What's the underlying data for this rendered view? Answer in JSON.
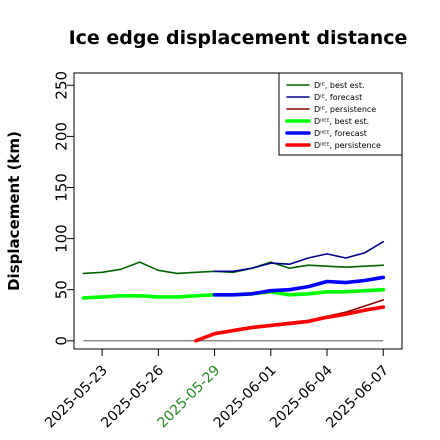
{
  "chart_data": {
    "type": "line",
    "title": "Ice edge displacement distance",
    "xlabel": "",
    "ylabel": "Displacement (km)",
    "ylim": [
      -8,
      262
    ],
    "xlim": [
      "2025-05-21T12:00",
      "2025-06-08"
    ],
    "y_ticks": [
      "0",
      "50",
      "100",
      "150",
      "200",
      "250"
    ],
    "y_tick_values": [
      0,
      50,
      100,
      150,
      200,
      250
    ],
    "x_ticks": [
      {
        "label": "2025-05-23",
        "date": "2025-05-23",
        "color": "#000000"
      },
      {
        "label": "2025-05-26",
        "date": "2025-05-26",
        "color": "#000000"
      },
      {
        "label": "2025-05-29",
        "date": "2025-05-29",
        "color": "#228b22"
      },
      {
        "label": "2025-06-01",
        "date": "2025-06-01",
        "color": "#000000"
      },
      {
        "label": "2025-06-04",
        "date": "2025-06-04",
        "color": "#000000"
      },
      {
        "label": "2025-06-07",
        "date": "2025-06-07",
        "color": "#000000"
      }
    ],
    "grid": false,
    "legend_position": "top-right",
    "series": [
      {
        "name": "Dᴵᴱ, best est.",
        "color": "#006400",
        "width": 1.6,
        "x": [
          "2025-05-22",
          "2025-05-23",
          "2025-05-24",
          "2025-05-25",
          "2025-05-26",
          "2025-05-27",
          "2025-05-28",
          "2025-05-29",
          "2025-05-30",
          "2025-05-31",
          "2025-06-01",
          "2025-06-02",
          "2025-06-03",
          "2025-06-04",
          "2025-06-05",
          "2025-06-06",
          "2025-06-07"
        ],
        "y": [
          66,
          67,
          70,
          77,
          69,
          66,
          67,
          68,
          67,
          71,
          77,
          71,
          74,
          73,
          72,
          73,
          74
        ]
      },
      {
        "name": "Dᴵᴱ, forecast",
        "color": "#00008b",
        "width": 1.6,
        "x": [
          "2025-05-29",
          "2025-05-30",
          "2025-05-31",
          "2025-06-01",
          "2025-06-02",
          "2025-06-03",
          "2025-06-04",
          "2025-06-05",
          "2025-06-06",
          "2025-06-07"
        ],
        "y": [
          68,
          68,
          71,
          76,
          75,
          81,
          85,
          81,
          86,
          97
        ]
      },
      {
        "name": "Dᴵᴱ, persistence",
        "color": "#8b0000",
        "width": 1.6,
        "x": [
          "2025-05-28",
          "2025-05-29",
          "2025-05-30",
          "2025-05-31",
          "2025-06-01",
          "2025-06-02",
          "2025-06-03",
          "2025-06-04",
          "2025-06-05",
          "2025-06-06",
          "2025-06-07"
        ],
        "y": [
          0,
          7,
          11,
          14,
          16,
          18,
          20,
          24,
          28,
          34,
          40
        ]
      },
      {
        "name": "Dᴵᴵᴱᴱ, best est.",
        "color": "#00ff00",
        "width": 3.6,
        "x": [
          "2025-05-22",
          "2025-05-23",
          "2025-05-24",
          "2025-05-25",
          "2025-05-26",
          "2025-05-27",
          "2025-05-28",
          "2025-05-29",
          "2025-05-30",
          "2025-05-31",
          "2025-06-01",
          "2025-06-02",
          "2025-06-03",
          "2025-06-04",
          "2025-06-05",
          "2025-06-06",
          "2025-06-07"
        ],
        "y": [
          42,
          43,
          44,
          44,
          43,
          43,
          44,
          45,
          45,
          46,
          48,
          45,
          46,
          48,
          48,
          49,
          50
        ]
      },
      {
        "name": "Dᴵᴵᴱᴱ, forecast",
        "color": "#0000ff",
        "width": 3.6,
        "x": [
          "2025-05-29",
          "2025-05-30",
          "2025-05-31",
          "2025-06-01",
          "2025-06-02",
          "2025-06-03",
          "2025-06-04",
          "2025-06-05",
          "2025-06-06",
          "2025-06-07"
        ],
        "y": [
          45,
          45,
          46,
          49,
          50,
          53,
          58,
          57,
          59,
          62
        ]
      },
      {
        "name": "Dᴵᴵᴱᴱ, persistence",
        "color": "#ff0000",
        "width": 3.6,
        "x": [
          "2025-05-28",
          "2025-05-29",
          "2025-05-30",
          "2025-05-31",
          "2025-06-01",
          "2025-06-02",
          "2025-06-03",
          "2025-06-04",
          "2025-06-05",
          "2025-06-06",
          "2025-06-07"
        ],
        "y": [
          0,
          7,
          10,
          13,
          15,
          17,
          19,
          23,
          26,
          30,
          33
        ]
      }
    ],
    "reference_line": {
      "color": "#666666",
      "value": 0,
      "x_range": [
        "2025-05-22",
        "2025-06-07"
      ]
    }
  }
}
